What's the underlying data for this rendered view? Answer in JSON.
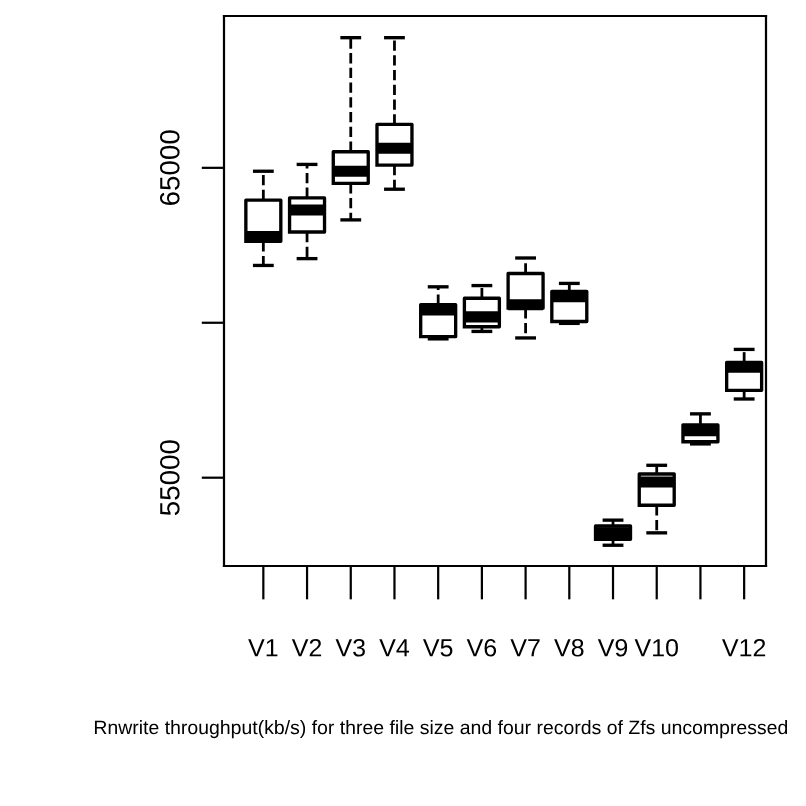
{
  "chart_data": {
    "type": "box",
    "xlabel": "Rnwrite throughput(kb/s) for three file size and four records of Zfs uncompressed",
    "categories": [
      "V1",
      "V2",
      "V3",
      "V4",
      "V5",
      "V6",
      "V7",
      "V8",
      "V9",
      "V10",
      null,
      "V12"
    ],
    "ylim": [
      52150,
      69900
    ],
    "yticks": [
      55000,
      {
        "value": 60000,
        "label": null
      },
      65000
    ],
    "grid": false,
    "line_style": "dashed",
    "boxes": [
      {
        "low": 61850,
        "q1": 62630,
        "median": 62780,
        "q3": 63960,
        "high": 64890
      },
      {
        "low": 62070,
        "q1": 62930,
        "median": 63640,
        "q3": 64030,
        "high": 65110
      },
      {
        "low": 63320,
        "q1": 64500,
        "median": 64890,
        "q3": 65520,
        "high": 69200
      },
      {
        "low": 64310,
        "q1": 65090,
        "median": 65630,
        "q3": 66400,
        "high": 69200
      },
      {
        "low": 59480,
        "q1": 59550,
        "median": 60410,
        "q3": 60580,
        "high": 61160
      },
      {
        "low": 59720,
        "q1": 59870,
        "median": 60190,
        "q3": 60790,
        "high": 61200
      },
      {
        "low": 59510,
        "q1": 60470,
        "median": 60580,
        "q3": 61590,
        "high": 62090
      },
      {
        "low": 59980,
        "q1": 60040,
        "median": 60840,
        "q3": 61010,
        "high": 61270
      },
      {
        "low": 52820,
        "q1": 53010,
        "median": 53220,
        "q3": 53440,
        "high": 53630
      },
      {
        "low": 53220,
        "q1": 54110,
        "median": 54860,
        "q3": 55120,
        "high": 55400
      },
      {
        "low": 56090,
        "q1": 56160,
        "median": 56520,
        "q3": 56700,
        "high": 57060
      },
      {
        "low": 57540,
        "q1": 57820,
        "median": 58570,
        "q3": 58720,
        "high": 59140
      }
    ]
  }
}
